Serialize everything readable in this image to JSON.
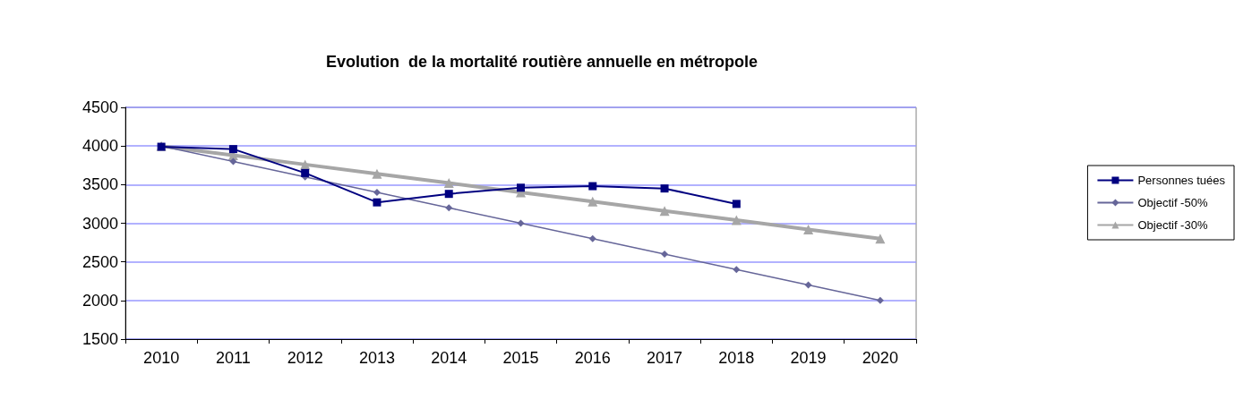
{
  "chart_data": {
    "type": "line",
    "title": "Evolution  de la mortalité routière annuelle en métropole",
    "categories": [
      "2010",
      "2011",
      "2012",
      "2013",
      "2014",
      "2015",
      "2016",
      "2017",
      "2018",
      "2019",
      "2020"
    ],
    "series": [
      {
        "name": "Personnes tuées",
        "color": "#000080",
        "marker": "square",
        "values": [
          3990,
          3960,
          3650,
          3270,
          3380,
          3460,
          3480,
          3450,
          3250,
          null,
          null
        ]
      },
      {
        "name": "Objectif -50%",
        "color": "#666699",
        "marker": "diamond",
        "values": [
          4000,
          3800,
          3600,
          3400,
          3200,
          3000,
          2800,
          2600,
          2400,
          2200,
          2000
        ]
      },
      {
        "name": "Objectif -30%",
        "color": "#a6a6a6",
        "marker": "triangle",
        "values": [
          4000,
          3880,
          3760,
          3640,
          3520,
          3400,
          3280,
          3160,
          3040,
          2920,
          2800
        ]
      }
    ],
    "ylim": [
      1500,
      4500
    ],
    "yticks": [
      1500,
      2000,
      2500,
      3000,
      3500,
      4000,
      4500
    ],
    "grid": "y",
    "legend": "right"
  }
}
